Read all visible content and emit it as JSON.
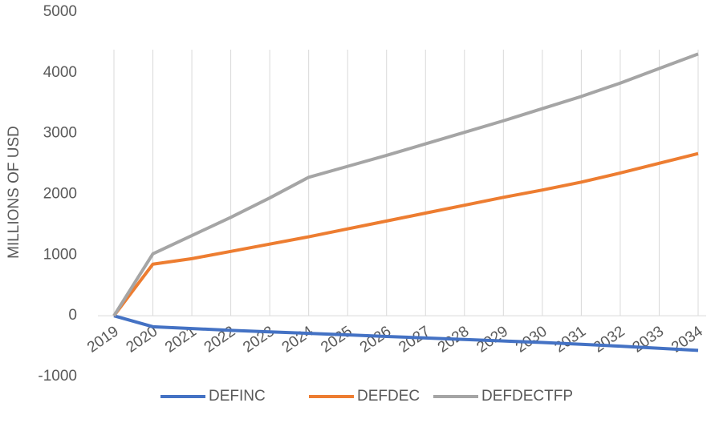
{
  "chart_data": {
    "type": "line",
    "y_label": "MILLIONS OF USD",
    "categories": [
      "2019",
      "2020",
      "2021",
      "2022",
      "2023",
      "2024",
      "2025",
      "2026",
      "2027",
      "2028",
      "2029",
      "2030",
      "2031",
      "2032",
      "2033",
      "2034"
    ],
    "series": [
      {
        "name": "DEFINC",
        "color": "#4472c4",
        "values": [
          0,
          -180,
          -210,
          -240,
          -265,
          -290,
          -315,
          -340,
          -365,
          -390,
          -415,
          -440,
          -470,
          -500,
          -535,
          -570
        ]
      },
      {
        "name": "DEFDEC",
        "color": "#ed7d31",
        "values": [
          0,
          850,
          940,
          1060,
          1180,
          1300,
          1430,
          1560,
          1690,
          1820,
          1950,
          2070,
          2200,
          2350,
          2510,
          2670
        ]
      },
      {
        "name": "DEFDECTFP",
        "color": "#a5a5a5",
        "values": [
          0,
          1020,
          1320,
          1620,
          1940,
          2280,
          2460,
          2640,
          2830,
          3020,
          3210,
          3410,
          3610,
          3830,
          4070,
          4310
        ]
      }
    ],
    "ylim": [
      -1000,
      5000
    ],
    "yticks": [
      -1000,
      0,
      1000,
      2000,
      3000,
      4000,
      5000
    ],
    "grid": true
  }
}
